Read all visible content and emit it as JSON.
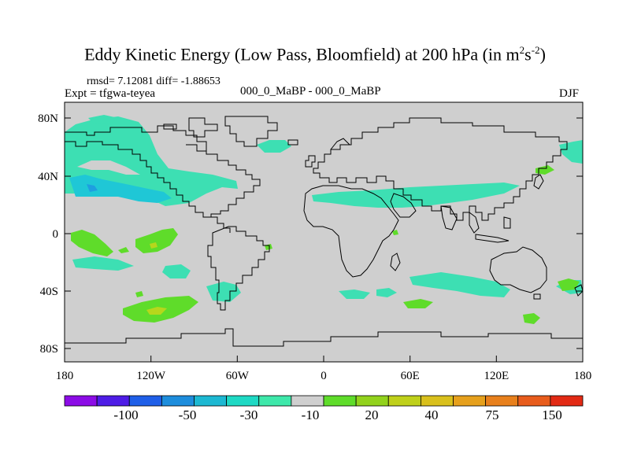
{
  "title": {
    "text": "Eddy Kinetic Energy (Low Pass, Bloomfield) at 200 hPa (in m",
    "sup1": "2",
    "mid": "s",
    "sup2": "-2",
    "end": ")"
  },
  "stats": {
    "rmsd_diff": "rmsd= 7.12081 diff= -1.88653"
  },
  "experiment": "Expt = tfgwa-teyea",
  "case_label": "000_0_MaBP - 000_0_MaBP",
  "season": "DJF",
  "axes": {
    "y_ticks": [
      "80N",
      "40N",
      "0",
      "40S",
      "80S"
    ],
    "x_ticks": [
      "180",
      "120W",
      "60W",
      "0",
      "60E",
      "120E",
      "180"
    ]
  },
  "colorbar": {
    "labels": [
      "-100",
      "-50",
      "-30",
      "-10",
      "20",
      "40",
      "75",
      "150"
    ],
    "colors": [
      "#8c0ce6",
      "#4e1ce6",
      "#1f5fe8",
      "#1d8ddc",
      "#1cb8d2",
      "#1ed9c4",
      "#3ee8aa",
      "#cfcfcf",
      "#5fdc2a",
      "#92d21c",
      "#bfd01a",
      "#d9c01c",
      "#e6a01c",
      "#e8801c",
      "#e85c1c",
      "#e22a14"
    ]
  },
  "map_colors": {
    "background": "#cfcfcf",
    "teal": "#3ddfb3",
    "cyan": "#1fc7d6",
    "blue": "#1e9fe0",
    "green": "#5fdc2a",
    "yellowgreen": "#b6d71c"
  }
}
